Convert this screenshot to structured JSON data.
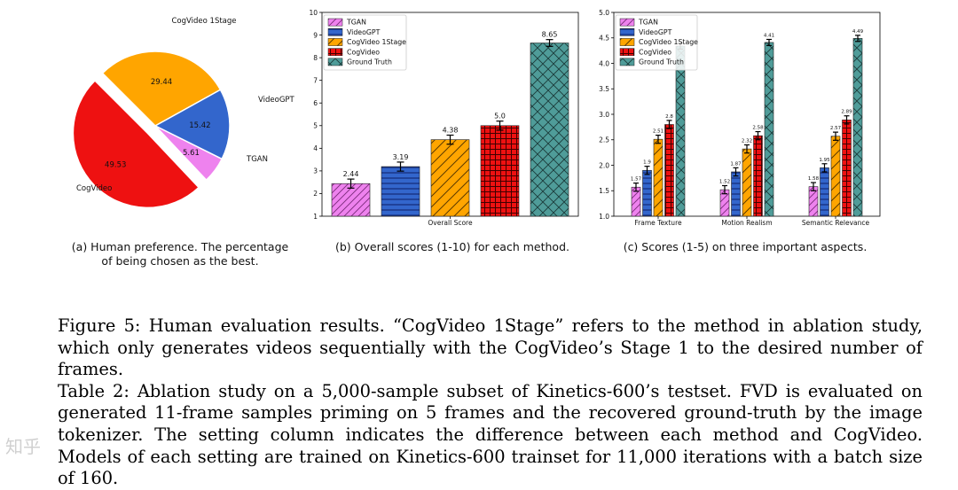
{
  "colors": {
    "TGAN": "#ee82ee",
    "VideoGPT": "#3366cc",
    "CogVideo 1Stage": "#ffa500",
    "CogVideo": "#ee1111",
    "Ground Truth": "#4f9c99"
  },
  "chart_data": [
    {
      "type": "pie",
      "title": "",
      "categories": [
        "CogVideo 1Stage",
        "VideoGPT",
        "TGAN",
        "CogVideo"
      ],
      "values": [
        29.44,
        15.42,
        5.61,
        49.53
      ],
      "explode": "CogVideo"
    },
    {
      "type": "bar",
      "title": "",
      "xlabel": "Overall Score",
      "ylabel": "",
      "ylim": [
        1,
        10
      ],
      "yticks": [
        1,
        2,
        3,
        4,
        5,
        6,
        7,
        8,
        9,
        10
      ],
      "categories": [
        "Overall Score"
      ],
      "series": [
        {
          "name": "TGAN",
          "values": [
            2.44
          ],
          "errors": [
            0.2
          ],
          "label": "2.44"
        },
        {
          "name": "VideoGPT",
          "values": [
            3.19
          ],
          "errors": [
            0.2
          ],
          "label": "3.19"
        },
        {
          "name": "CogVideo 1Stage",
          "values": [
            4.38
          ],
          "errors": [
            0.2
          ],
          "label": "4.38"
        },
        {
          "name": "CogVideo",
          "values": [
            5.0
          ],
          "errors": [
            0.2
          ],
          "label": "5.0"
        },
        {
          "name": "Ground Truth",
          "values": [
            8.65
          ],
          "errors": [
            0.15
          ],
          "label": "8.65"
        }
      ],
      "legend": "top-left"
    },
    {
      "type": "bar",
      "title": "",
      "xlabel": "",
      "ylabel": "",
      "ylim": [
        1.0,
        5.0
      ],
      "yticks": [
        "1.0",
        "1.5",
        "2.0",
        "2.5",
        "3.0",
        "3.5",
        "4.0",
        "4.5",
        "5.0"
      ],
      "categories": [
        "Frame Texture",
        "Motion Realism",
        "Semantic Relevance"
      ],
      "series": [
        {
          "name": "TGAN",
          "values": [
            1.57,
            1.52,
            1.58
          ],
          "errors": [
            0.08,
            0.08,
            0.08
          ],
          "labels": [
            "1.57",
            "1.52",
            "1.58"
          ]
        },
        {
          "name": "VideoGPT",
          "values": [
            1.9,
            1.87,
            1.95
          ],
          "errors": [
            0.08,
            0.08,
            0.08
          ],
          "labels": [
            "1.9",
            "1.87",
            "1.95"
          ]
        },
        {
          "name": "CogVideo 1Stage",
          "values": [
            2.51,
            2.32,
            2.57
          ],
          "errors": [
            0.08,
            0.08,
            0.08
          ],
          "labels": [
            "2.51",
            "2.32",
            "2.57"
          ]
        },
        {
          "name": "CogVideo",
          "values": [
            2.8,
            2.58,
            2.89
          ],
          "errors": [
            0.08,
            0.08,
            0.08
          ],
          "labels": [
            "2.8",
            "2.58",
            "2.89"
          ]
        },
        {
          "name": "Ground Truth",
          "values": [
            4.34,
            4.41,
            4.49
          ],
          "errors": [
            0.06,
            0.06,
            0.06
          ],
          "labels": [
            "",
            "4.41",
            "4.49"
          ]
        }
      ],
      "legend": "top-left"
    }
  ],
  "subcaptions": {
    "a": "(a) Human preference. The percentage of being chosen as the best.",
    "b": "(b) Overall scores (1-10) for each method.",
    "c": "(c) Scores (1-5) on three important aspects."
  },
  "caption": {
    "figure": "Figure 5: Human evaluation results. “CogVideo 1Stage” refers to the method in ablation study, which only generates videos sequentially with the CogVideo’s Stage 1 to the desired number of frames.",
    "table": "Table 2: Ablation study on a 5,000-sample subset of Kinetics-600’s testset. FVD is evaluated on generated 11-frame samples priming on 5 frames and the recovered ground-truth by the image tokenizer. The setting column indicates the difference between each method and CogVideo. Models of each setting are trained on Kinetics-600 trainset for 11,000 iterations with a batch size of 160."
  },
  "watermark": "知乎"
}
